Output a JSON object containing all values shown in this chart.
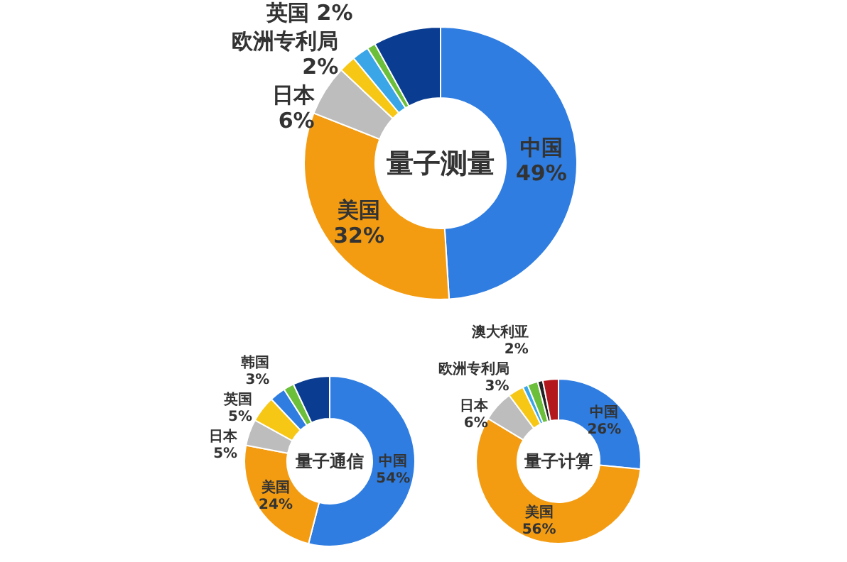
{
  "chart_data": [
    {
      "type": "donut",
      "title": "量子测量",
      "categories": [
        "中国",
        "美国",
        "日本",
        "欧洲专利局",
        "英国",
        null,
        null
      ],
      "values": [
        49,
        32,
        6,
        2,
        2,
        1,
        8
      ],
      "value_labels": [
        "49%",
        "32%",
        "6%",
        "2%",
        "2%",
        null,
        null
      ],
      "colors": [
        "#2f7de1",
        "#f39c12",
        "#bdbdbd",
        "#f7c716",
        "#3aa6e8",
        "#6cbf3a",
        "#0a3d91"
      ]
    },
    {
      "type": "donut",
      "title": "量子通信",
      "categories": [
        "中国",
        "美国",
        "日本",
        "英国",
        "韩国",
        null,
        null
      ],
      "values": [
        54,
        24,
        5,
        5,
        3,
        2,
        7
      ],
      "value_labels": [
        "54%",
        "24%",
        "5%",
        "5%",
        "3%",
        null,
        null
      ],
      "colors": [
        "#2f7de1",
        "#f39c12",
        "#bdbdbd",
        "#f7c716",
        "#2f7de1",
        "#6cbf3a",
        "#0a3d91"
      ]
    },
    {
      "type": "donut",
      "title": "量子计算",
      "categories": [
        "中国",
        "美国",
        "日本",
        "欧洲专利局",
        null,
        "澳大利亚",
        null,
        null
      ],
      "values": [
        26,
        56,
        6,
        3,
        1,
        2,
        1,
        3
      ],
      "value_labels": [
        "26%",
        "56%",
        "6%",
        "3%",
        null,
        "2%",
        null,
        null
      ],
      "colors": [
        "#2f7de1",
        "#f39c12",
        "#bdbdbd",
        "#f7c716",
        "#3aa6e8",
        "#6cbf3a",
        "#222222",
        "#b3191c"
      ]
    }
  ]
}
